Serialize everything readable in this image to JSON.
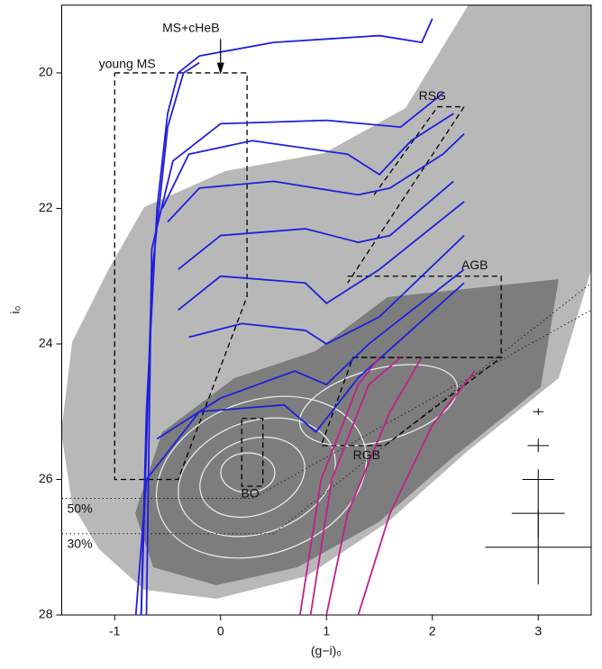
{
  "chart_data": {
    "type": "line",
    "xlabel": "(g−i)₀",
    "ylabel": "i₀",
    "xlim": [
      -1.5,
      3.5
    ],
    "ylim": [
      28,
      19
    ],
    "xticks": [
      -1,
      0,
      1,
      2,
      3
    ],
    "yticks": [
      20,
      22,
      24,
      26,
      28
    ],
    "series": [
      {
        "color": "#1f1fdc",
        "x": [
          -0.75,
          -0.7,
          -0.6,
          -0.5,
          -0.4,
          -0.2,
          0.5,
          1.5,
          1.9,
          2.0
        ],
        "y": [
          28,
          25,
          22,
          20.6,
          20,
          19.75,
          19.55,
          19.45,
          19.55,
          19.2
        ]
      },
      {
        "color": "#1f1fdc",
        "x": [
          -0.75,
          -0.65,
          -0.5,
          -0.35,
          -0.2
        ],
        "y": [
          28,
          23,
          20.8,
          20,
          19.85
        ]
      },
      {
        "color": "#1f1fdc",
        "x": [
          -0.7,
          -0.65,
          -0.45,
          0,
          1,
          1.7,
          2.1
        ],
        "y": [
          28,
          22.6,
          21.3,
          20.75,
          20.7,
          20.8,
          20.3
        ]
      },
      {
        "color": "#1f1fdc",
        "x": [
          -0.55,
          -0.3,
          0.3,
          1.2,
          1.5,
          1.8,
          2.2
        ],
        "y": [
          22.0,
          21.2,
          21.0,
          21.2,
          21.5,
          21.0,
          20.6
        ]
      },
      {
        "color": "#1f1fdc",
        "x": [
          -0.5,
          -0.2,
          0.5,
          1.3,
          1.6,
          2.1,
          2.3
        ],
        "y": [
          22.2,
          21.7,
          21.6,
          21.8,
          21.7,
          21.2,
          20.9
        ]
      },
      {
        "color": "#1f1fdc",
        "x": [
          -0.4,
          0,
          0.8,
          1.3,
          1.6,
          2.2
        ],
        "y": [
          22.9,
          22.4,
          22.3,
          22.5,
          22.4,
          21.6
        ]
      },
      {
        "color": "#1f1fdc",
        "x": [
          -0.4,
          0,
          0.8,
          1.0,
          1.5,
          2.3
        ],
        "y": [
          23.5,
          23.0,
          23.1,
          23.4,
          22.9,
          21.9
        ]
      },
      {
        "color": "#1f1fdc",
        "x": [
          -0.3,
          0.2,
          0.8,
          1.0,
          1.5,
          2.3
        ],
        "y": [
          23.9,
          23.7,
          23.8,
          24.0,
          23.6,
          22.4
        ]
      },
      {
        "color": "#1f1fdc",
        "x": [
          -0.6,
          0,
          0.7,
          1.0,
          1.4,
          2.3
        ],
        "y": [
          25.4,
          24.8,
          24.4,
          24.6,
          24.0,
          22.9
        ]
      },
      {
        "color": "#1f1fdc",
        "x": [
          -0.8,
          -0.7,
          -0.2,
          0.6,
          0.9,
          1.3,
          2.3
        ],
        "y": [
          28,
          26.0,
          25.0,
          24.9,
          25.3,
          24.5,
          23.1
        ]
      },
      {
        "color": "#c0208a",
        "x": [
          0.75,
          0.95,
          1.3,
          1.5
        ],
        "y": [
          28,
          26,
          24.6,
          24.2
        ]
      },
      {
        "color": "#c0208a",
        "x": [
          0.85,
          1.05,
          1.4,
          1.7
        ],
        "y": [
          28,
          26,
          24.6,
          24.2
        ]
      },
      {
        "color": "#c0208a",
        "x": [
          1.0,
          1.2,
          1.6,
          1.9
        ],
        "y": [
          28,
          26.5,
          25,
          24.2
        ]
      },
      {
        "color": "#c0208a",
        "x": [
          1.3,
          1.6,
          2.0,
          2.4
        ],
        "y": [
          28,
          26.5,
          25.2,
          24.4
        ]
      }
    ],
    "regions": [
      {
        "label": "young MS",
        "x": [
          -1,
          0.25,
          0.25,
          -0.4,
          -1,
          -1
        ],
        "y": [
          20,
          20,
          23.3,
          26,
          26,
          20
        ]
      },
      {
        "label": "RSG",
        "x": [
          1.45,
          2.05,
          2.3,
          1.2
        ],
        "y": [
          21.8,
          20.5,
          20.5,
          23.1
        ]
      },
      {
        "label": "AGB",
        "x": [
          1.2,
          2.65,
          2.65,
          1.25
        ],
        "y": [
          23.0,
          23.0,
          24.2,
          24.2
        ]
      },
      {
        "label": "RGB",
        "x": [
          1.25,
          2.65,
          1.55,
          0.95,
          1.25
        ],
        "y": [
          24.2,
          24.2,
          25.5,
          25.5,
          24.2
        ]
      },
      {
        "label": "BO",
        "x": [
          0.2,
          0.4,
          0.4,
          0.2,
          0.2
        ],
        "y": [
          25.1,
          25.1,
          26.1,
          26.1,
          25.1
        ]
      }
    ],
    "annotation": "MS+cHeB",
    "completeness": [
      {
        "label": "50%",
        "x": [
          -1.5,
          0.3,
          3.5
        ],
        "y": [
          26.28,
          26.28,
          23.5
        ]
      },
      {
        "label": "30%",
        "x": [
          -1.5,
          0.5,
          3.5
        ],
        "y": [
          26.8,
          26.8,
          23.1
        ]
      }
    ],
    "errorbars": {
      "x": [
        3,
        3,
        3,
        3,
        3
      ],
      "y": [
        25,
        25.5,
        26,
        26.5,
        27
      ],
      "xerr": [
        0.05,
        0.1,
        0.15,
        0.25,
        0.5
      ],
      "yerr": [
        0.05,
        0.1,
        0.15,
        0.35,
        0.55
      ]
    }
  }
}
